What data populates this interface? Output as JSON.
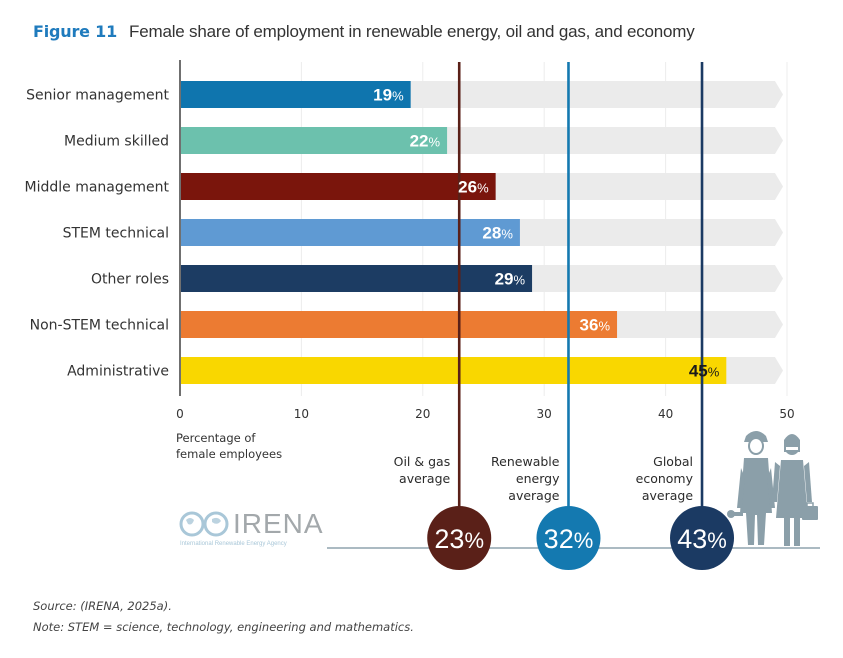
{
  "figure": {
    "number_label": "Figure 11",
    "title": "Female share of employment in renewable energy, oil and gas, and economy"
  },
  "chart_data": {
    "type": "bar",
    "orientation": "horizontal",
    "title": "Female share of employment in renewable energy, oil and gas, and economy",
    "xlabel": "Percentage of female employees",
    "ylabel": "",
    "xlim": [
      0,
      50
    ],
    "x_ticks": [
      0,
      10,
      20,
      30,
      40,
      50
    ],
    "grid": true,
    "categories": [
      "Senior management",
      "Medium skilled",
      "Middle management",
      "STEM technical",
      "Other roles",
      "Non-STEM technical",
      "Administrative"
    ],
    "values": [
      19,
      22,
      26,
      28,
      29,
      36,
      45
    ],
    "value_suffix": "%",
    "bar_colors": [
      "#0f75ae",
      "#6cc1ad",
      "#7a150c",
      "#5f9ad3",
      "#1c3c63",
      "#ec7b32",
      "#f9d700"
    ],
    "label_colors": [
      "#ffffff",
      "#ffffff",
      "#ffffff",
      "#ffffff",
      "#ffffff",
      "#ffffff",
      "#1a1a1a"
    ],
    "track_color": "#ebebeb",
    "reference_lines": [
      {
        "label_lines": [
          "Oil & gas",
          "average"
        ],
        "value": 23,
        "display": "23",
        "color": "#5a2018"
      },
      {
        "label_lines": [
          "Renewable",
          "energy",
          "average"
        ],
        "value": 32,
        "display": "32",
        "color": "#1479b0"
      },
      {
        "label_lines": [
          "Global",
          "economy",
          "average"
        ],
        "value": 43,
        "display": "43",
        "color": "#1b3a63"
      }
    ]
  },
  "axis": {
    "xlabel_line1": "Percentage of",
    "xlabel_line2": "female employees"
  },
  "logo": {
    "name": "IRENA",
    "subtitle": "International Renewable Energy Agency"
  },
  "footer": {
    "source": "Source: (IRENA, 2025a).",
    "note": "Note: STEM = science, technology, engineering and mathematics."
  }
}
